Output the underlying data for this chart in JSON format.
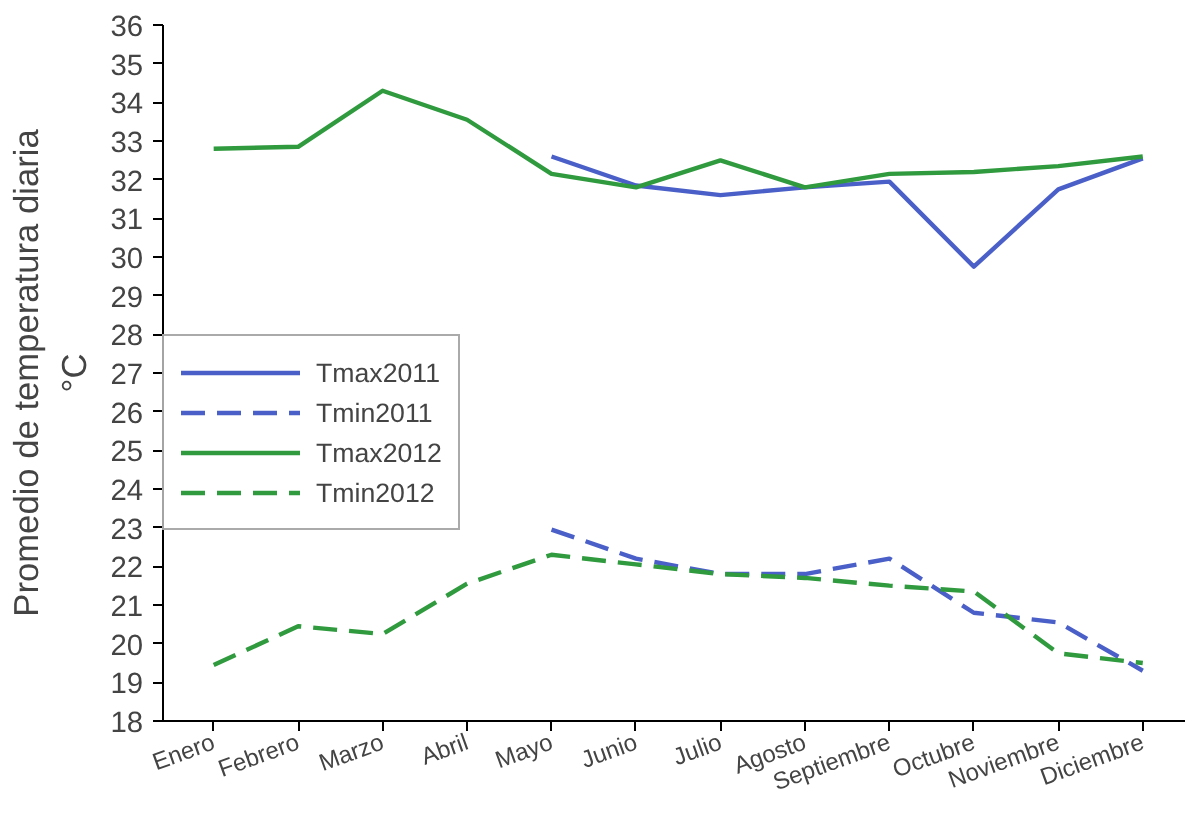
{
  "chart_data": {
    "type": "line",
    "ylabel": "Promedio de temperatura diaria\n°C",
    "categories": [
      "Enero",
      "Febrero",
      "Marzo",
      "Abril",
      "Mayo",
      "Junio",
      "Julio",
      "Agosto",
      "Septiembre",
      "Octubre",
      "Noviembre",
      "Diciembre"
    ],
    "series": [
      {
        "name": "Tmax2011",
        "color": "#4a5fc8",
        "line_style": "solid",
        "values": [
          null,
          null,
          null,
          null,
          32.6,
          31.85,
          31.6,
          31.8,
          31.95,
          29.75,
          31.75,
          32.55
        ]
      },
      {
        "name": "Tmin2011",
        "color": "#4a5fc8",
        "line_style": "dashed",
        "values": [
          null,
          null,
          null,
          null,
          22.95,
          22.2,
          21.8,
          21.8,
          22.2,
          20.8,
          20.55,
          19.3
        ]
      },
      {
        "name": "Tmax2012",
        "color": "#2f9a3e",
        "line_style": "solid",
        "values": [
          32.8,
          32.85,
          34.3,
          33.55,
          32.15,
          31.8,
          32.5,
          31.8,
          32.15,
          32.2,
          32.35,
          32.6
        ]
      },
      {
        "name": "Tmin2012",
        "color": "#2f9a3e",
        "line_style": "dashed",
        "values": [
          19.45,
          20.45,
          20.25,
          21.55,
          22.3,
          22.05,
          21.8,
          21.7,
          21.5,
          21.35,
          19.75,
          19.5
        ]
      }
    ],
    "ylim": [
      18,
      36
    ],
    "yticks": [
      18,
      19,
      20,
      21,
      22,
      23,
      24,
      25,
      26,
      27,
      28,
      29,
      30,
      31,
      32,
      33,
      34,
      35,
      36
    ],
    "grid": false,
    "legend": "left",
    "marker": "none"
  }
}
